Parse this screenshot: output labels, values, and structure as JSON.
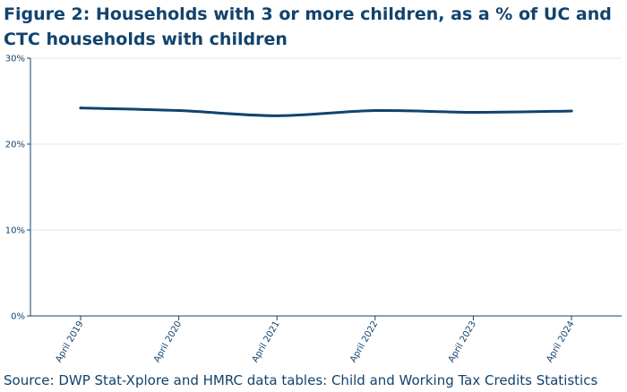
{
  "chart_data": {
    "type": "line",
    "title": "Figure 2: Households with 3 or more children, as a % of UC and CTC households with children",
    "xlabel": "",
    "ylabel": "",
    "x": [
      "April 2019",
      "April 2020",
      "April 2021",
      "April 2022",
      "April 2023",
      "April 2024"
    ],
    "series": [
      {
        "values": [
          24.2,
          23.9,
          23.3,
          23.9,
          23.7,
          23.85
        ]
      }
    ],
    "ylim": [
      0,
      30
    ],
    "yticks": [
      0,
      10,
      20,
      30
    ],
    "ytick_labels": [
      "0%",
      "10%",
      "20%",
      "30%"
    ],
    "grid": true,
    "legend": "none",
    "line_color": "#12436d",
    "grid_color": "#e6e6e6",
    "axis_color": "#12436d"
  },
  "source": "Source: DWP Stat-Xplore and HMRC data tables: Child and Working Tax Credits Statistics"
}
